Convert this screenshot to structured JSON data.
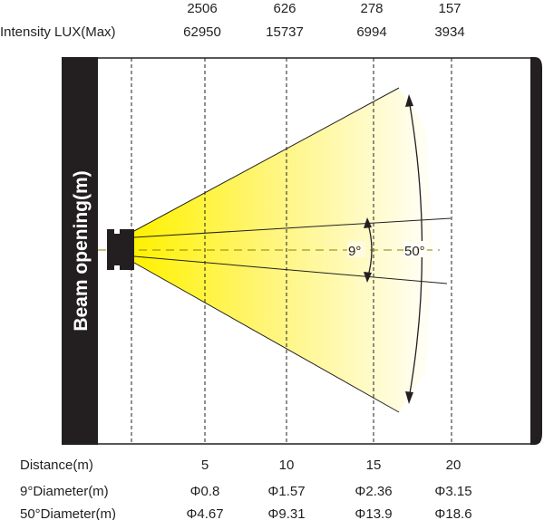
{
  "top": {
    "row1": [
      "2506",
      "626",
      "278",
      "157"
    ],
    "label": "Intensity LUX(Max)",
    "row2": [
      "62950",
      "15737",
      "6994",
      "3934"
    ]
  },
  "side_label": "Beam opening(m)",
  "angles": {
    "narrow": "9°",
    "wide": "50°"
  },
  "bottom": {
    "distance_label": "Distance(m)",
    "distances": [
      "5",
      "10",
      "15",
      "20"
    ],
    "d9_label": "9°Diameter(m)",
    "d9": [
      "Φ0.8",
      "Φ1.57",
      "Φ2.36",
      "Φ3.15"
    ],
    "d50_label": "50°Diameter(m)",
    "d50": [
      "Φ4.67",
      "Φ9.31",
      "Φ13.9",
      "Φ18.6"
    ]
  },
  "colors": {
    "beam": "#fff200",
    "frame": "#231f20"
  }
}
